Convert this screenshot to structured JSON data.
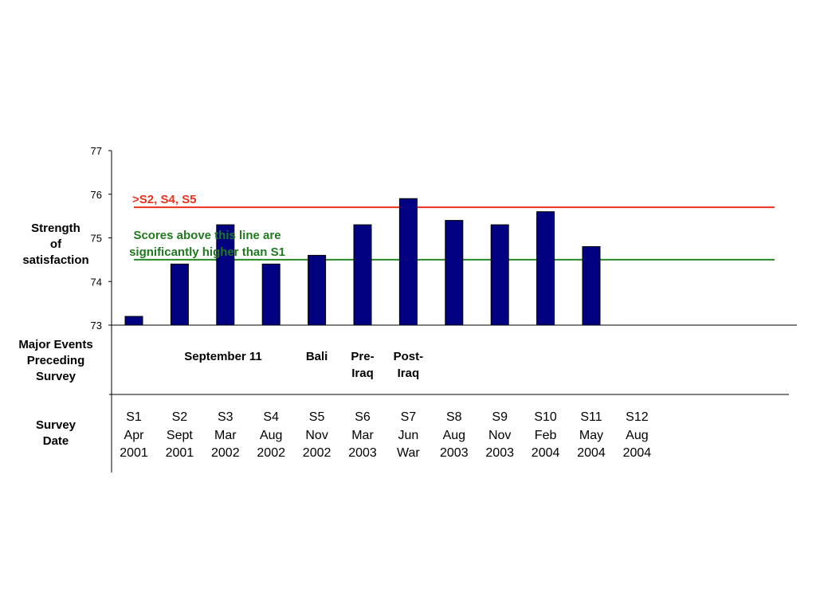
{
  "chart_data": {
    "type": "bar",
    "ylabel": "Strength\nof\nsatisfaction",
    "ylim": [
      73,
      77
    ],
    "yticks": [
      73,
      74,
      75,
      76,
      77
    ],
    "grid": false,
    "legend": "none",
    "bar_color": "#000080",
    "categories": [
      "S1",
      "S2",
      "S3",
      "S4",
      "S5",
      "S6",
      "S7",
      "S8",
      "S9",
      "S10",
      "S11",
      "S12"
    ],
    "series": [
      {
        "values": [
          73.2,
          74.4,
          75.3,
          74.4,
          74.6,
          75.3,
          75.9,
          75.4,
          75.3,
          75.6,
          74.8,
          null
        ]
      }
    ],
    "reference_lines": [
      {
        "value": 75.7,
        "color": "#e8321e",
        "label": ">S2, S4, S5"
      },
      {
        "value": 74.5,
        "color": "#2a8a2a",
        "label": "Scores above this line are\nsignificantly higher than S1"
      }
    ]
  },
  "table": {
    "events_label": "Major Events\nPreceding\nSurvey",
    "date_label": "Survey\nDate",
    "events": [
      {
        "survey": "S2",
        "text": "September 11"
      },
      {
        "survey": "S5",
        "text": "Bali"
      },
      {
        "survey": "S6",
        "text": "Pre-\nIraq"
      },
      {
        "survey": "S7",
        "text": "Post-\nIraq"
      }
    ],
    "dates": [
      "S1\nApr\n2001",
      "S2\nSept\n2001",
      "S3\nMar\n2002",
      "S4\nAug\n2002",
      "S5\nNov\n2002",
      "S6\nMar\n2003",
      "S7\nJun\nWar",
      "S8\nAug\n2003",
      "S9\nNov\n2003",
      "S10\nFeb\n2004",
      "S11\nMay\n2004",
      "S12\nAug\n2004"
    ]
  }
}
